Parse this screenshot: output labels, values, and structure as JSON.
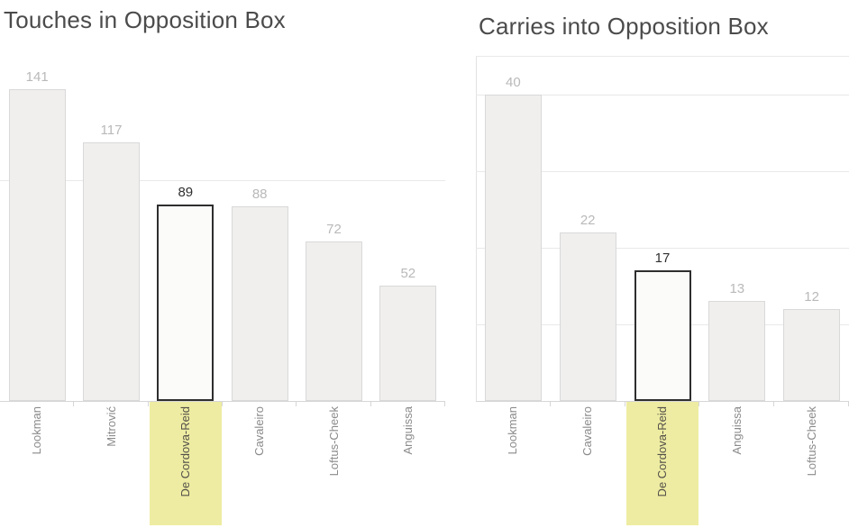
{
  "chart_data": [
    {
      "type": "bar",
      "title": "Touches in Opposition Box",
      "categories": [
        "Lookman",
        "Mitrović",
        "De Cordova-Reid",
        "Cavaleiro",
        "Loftus-Cheek",
        "Anguissa"
      ],
      "values": [
        141,
        117,
        89,
        88,
        72,
        52
      ],
      "highlighted_category": "De Cordova-Reid",
      "xlabel": "",
      "ylabel": "",
      "ylim": [
        0,
        159
      ],
      "gridlines": [
        100
      ],
      "legend": "none"
    },
    {
      "type": "bar",
      "title": "Carries into Opposition Box",
      "categories": [
        "Lookman",
        "Cavaleiro",
        "De Cordova-Reid",
        "Anguissa",
        "Loftus-Cheek"
      ],
      "values": [
        40,
        22,
        17,
        13,
        12
      ],
      "highlighted_category": "De Cordova-Reid",
      "xlabel": "",
      "ylabel": "",
      "ylim": [
        0,
        45
      ],
      "gridlines": [
        10,
        20,
        30,
        40
      ],
      "legend": "none"
    }
  ],
  "colors": {
    "background": "#ffffff",
    "title": "#4b4b4b",
    "bar_fill": "#f0efee",
    "bar_border": "#d9d9d9",
    "highlight_bar_fill": "#fbfbfa",
    "highlight_bar_border": "#2e2e2e",
    "highlight_label_bg": "#eeeca2",
    "value_label": "#b9b9b9",
    "value_label_highlight": "#2f2f2f",
    "category_label": "#8b8b8b",
    "category_label_highlight": "#53504a",
    "gridline": "#e9e9e9",
    "axis_line": "#d6d6d6",
    "plot_border": "#e2e2e2"
  }
}
